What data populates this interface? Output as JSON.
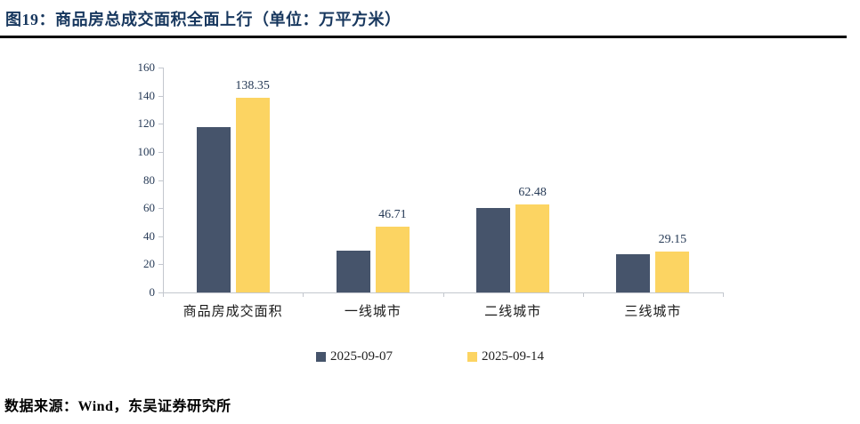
{
  "header": {
    "title": "图19：商品房总成交面积全面上行（单位：万平方米）"
  },
  "chart_data": {
    "type": "bar",
    "title": "商品房总成交面积全面上行",
    "unit": "万平方米",
    "categories": [
      "商品房成交面积",
      "一线城市",
      "二线城市",
      "三线城市"
    ],
    "series": [
      {
        "name": "2025-09-07",
        "color": "#46546B",
        "values": [
          117.5,
          30.0,
          60.0,
          27.0
        ],
        "show_labels": false
      },
      {
        "name": "2025-09-14",
        "color": "#FCD462",
        "values": [
          138.35,
          46.71,
          62.48,
          29.15
        ],
        "show_labels": true
      }
    ],
    "data_labels": [
      "138.35",
      "46.71",
      "62.48",
      "29.15"
    ],
    "ylim": [
      0,
      160
    ],
    "yticks": [
      0,
      20,
      40,
      60,
      80,
      100,
      120,
      140,
      160
    ],
    "grid": false,
    "legend_position": "bottom",
    "axis_color": "#C3C7CE",
    "tick_label_color": "#263A56"
  },
  "footer": {
    "source": "数据来源：Wind，东吴证券研究所"
  }
}
